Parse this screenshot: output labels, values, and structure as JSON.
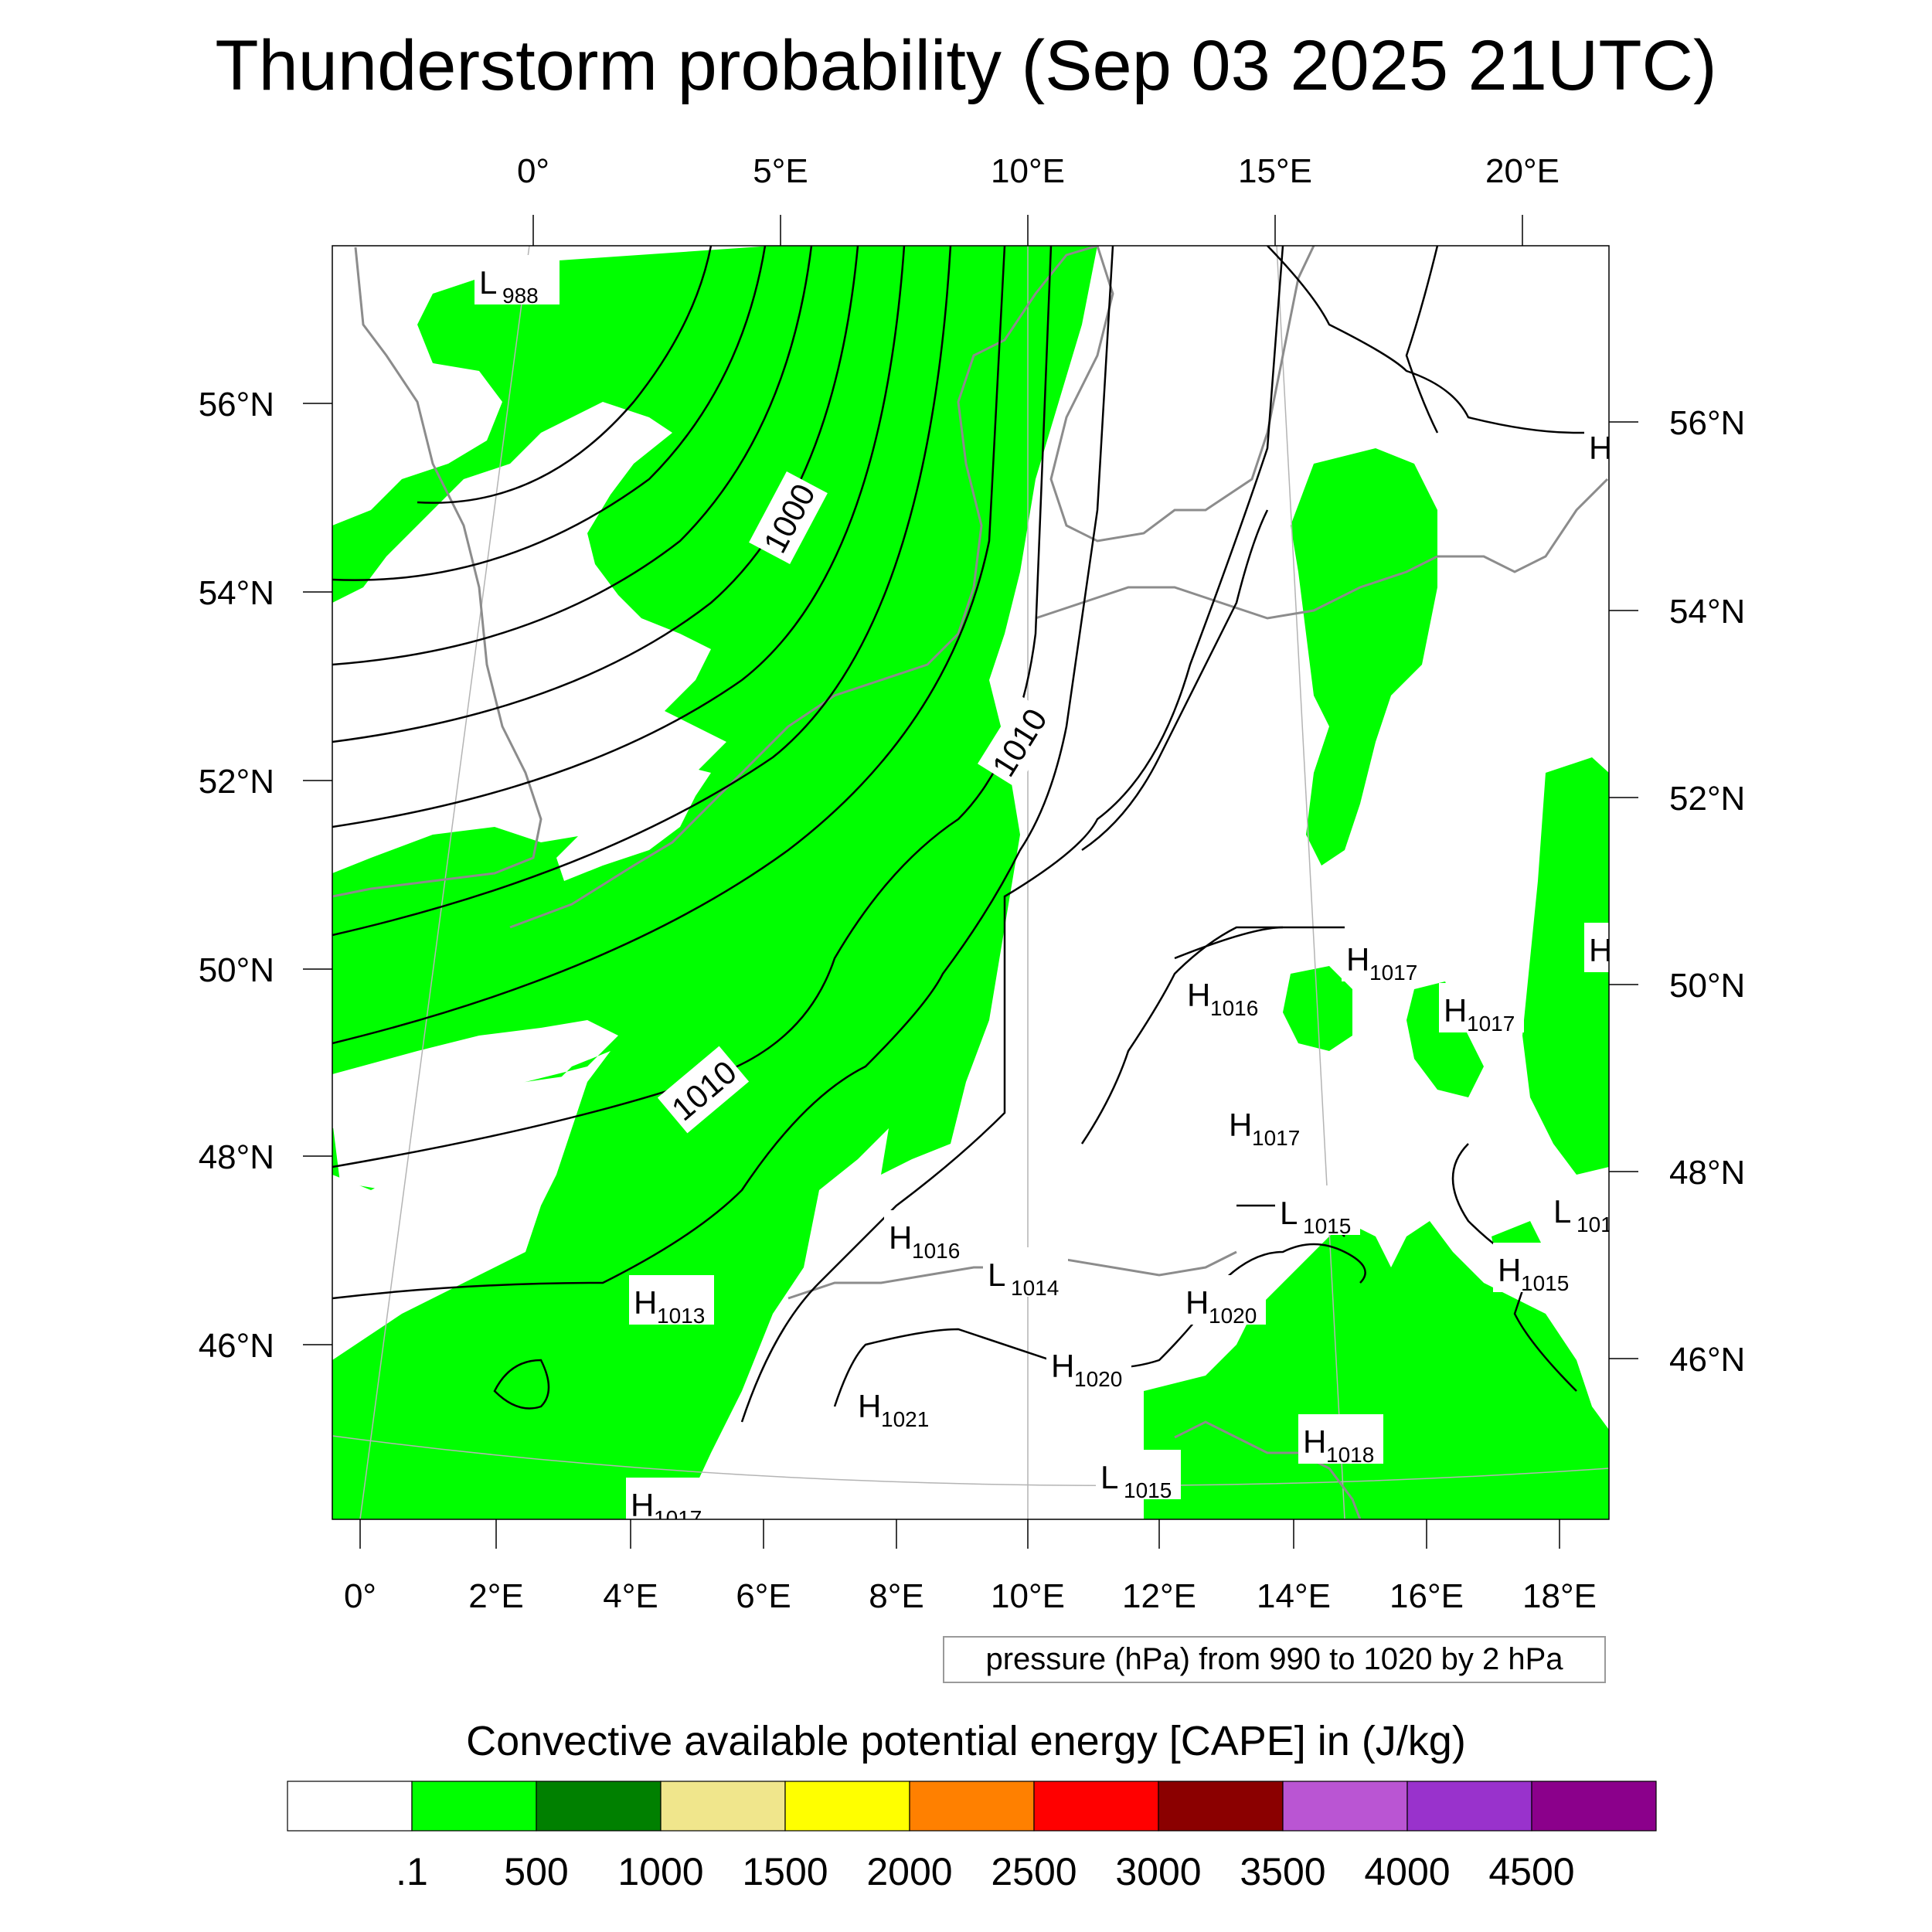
{
  "title": "Thunderstorm probability (Sep 03 2025 21UTC)",
  "map": {
    "top_lon_labels": [
      "0°",
      "5°E",
      "10°E",
      "15°E",
      "20°E"
    ],
    "bottom_lon_labels": [
      "0°",
      "2°E",
      "4°E",
      "6°E",
      "8°E",
      "10°E",
      "12°E",
      "14°E",
      "16°E",
      "18°E"
    ],
    "left_lat_labels": [
      "56°N",
      "54°N",
      "52°N",
      "50°N",
      "48°N",
      "46°N"
    ],
    "right_lat_labels": [
      "56°N",
      "54°N",
      "52°N",
      "50°N",
      "48°N",
      "46°N"
    ],
    "isobar_labels": [
      "1000",
      "1010",
      "1010"
    ],
    "pressure_centers": [
      {
        "type": "L",
        "value": "988"
      },
      {
        "type": "H",
        "value": "1013"
      },
      {
        "type": "H",
        "value": "1017"
      },
      {
        "type": "H",
        "value": "1016"
      },
      {
        "type": "L",
        "value": "1014"
      },
      {
        "type": "H",
        "value": "1021"
      },
      {
        "type": "H",
        "value": "1020"
      },
      {
        "type": "H",
        "value": "1020"
      },
      {
        "type": "L",
        "value": "1015"
      },
      {
        "type": "H",
        "value": "1018"
      },
      {
        "type": "L",
        "value": "1015"
      },
      {
        "type": "H",
        "value": "1016"
      },
      {
        "type": "H",
        "value": "1017"
      },
      {
        "type": "H",
        "value": "1017"
      },
      {
        "type": "H",
        "value": "1017"
      },
      {
        "type": "H",
        "value": "1015"
      },
      {
        "type": "L",
        "value": "101"
      },
      {
        "type": "H",
        "value": ""
      },
      {
        "type": "H",
        "value": ""
      }
    ],
    "colors": {
      "cape_fill": "#00ff00",
      "isobar": "#000000",
      "coastline": "#8c8c8c",
      "grid": "#b4b4b4"
    }
  },
  "pressure_note": "pressure (hPa) from 990 to 1020 by 2 hPa",
  "colorbar": {
    "title": "Convective available potential energy [CAPE] in (J/kg)",
    "colors": [
      "#ffffff",
      "#00ff00",
      "#008000",
      "#f0e68c",
      "#ffff00",
      "#ff8000",
      "#ff0000",
      "#8b0000",
      "#ba55d3",
      "#9932cc",
      "#8b008b"
    ],
    "labels": [
      ".1",
      "500",
      "1000",
      "1500",
      "2000",
      "2500",
      "3000",
      "3500",
      "4000",
      "4500"
    ]
  }
}
